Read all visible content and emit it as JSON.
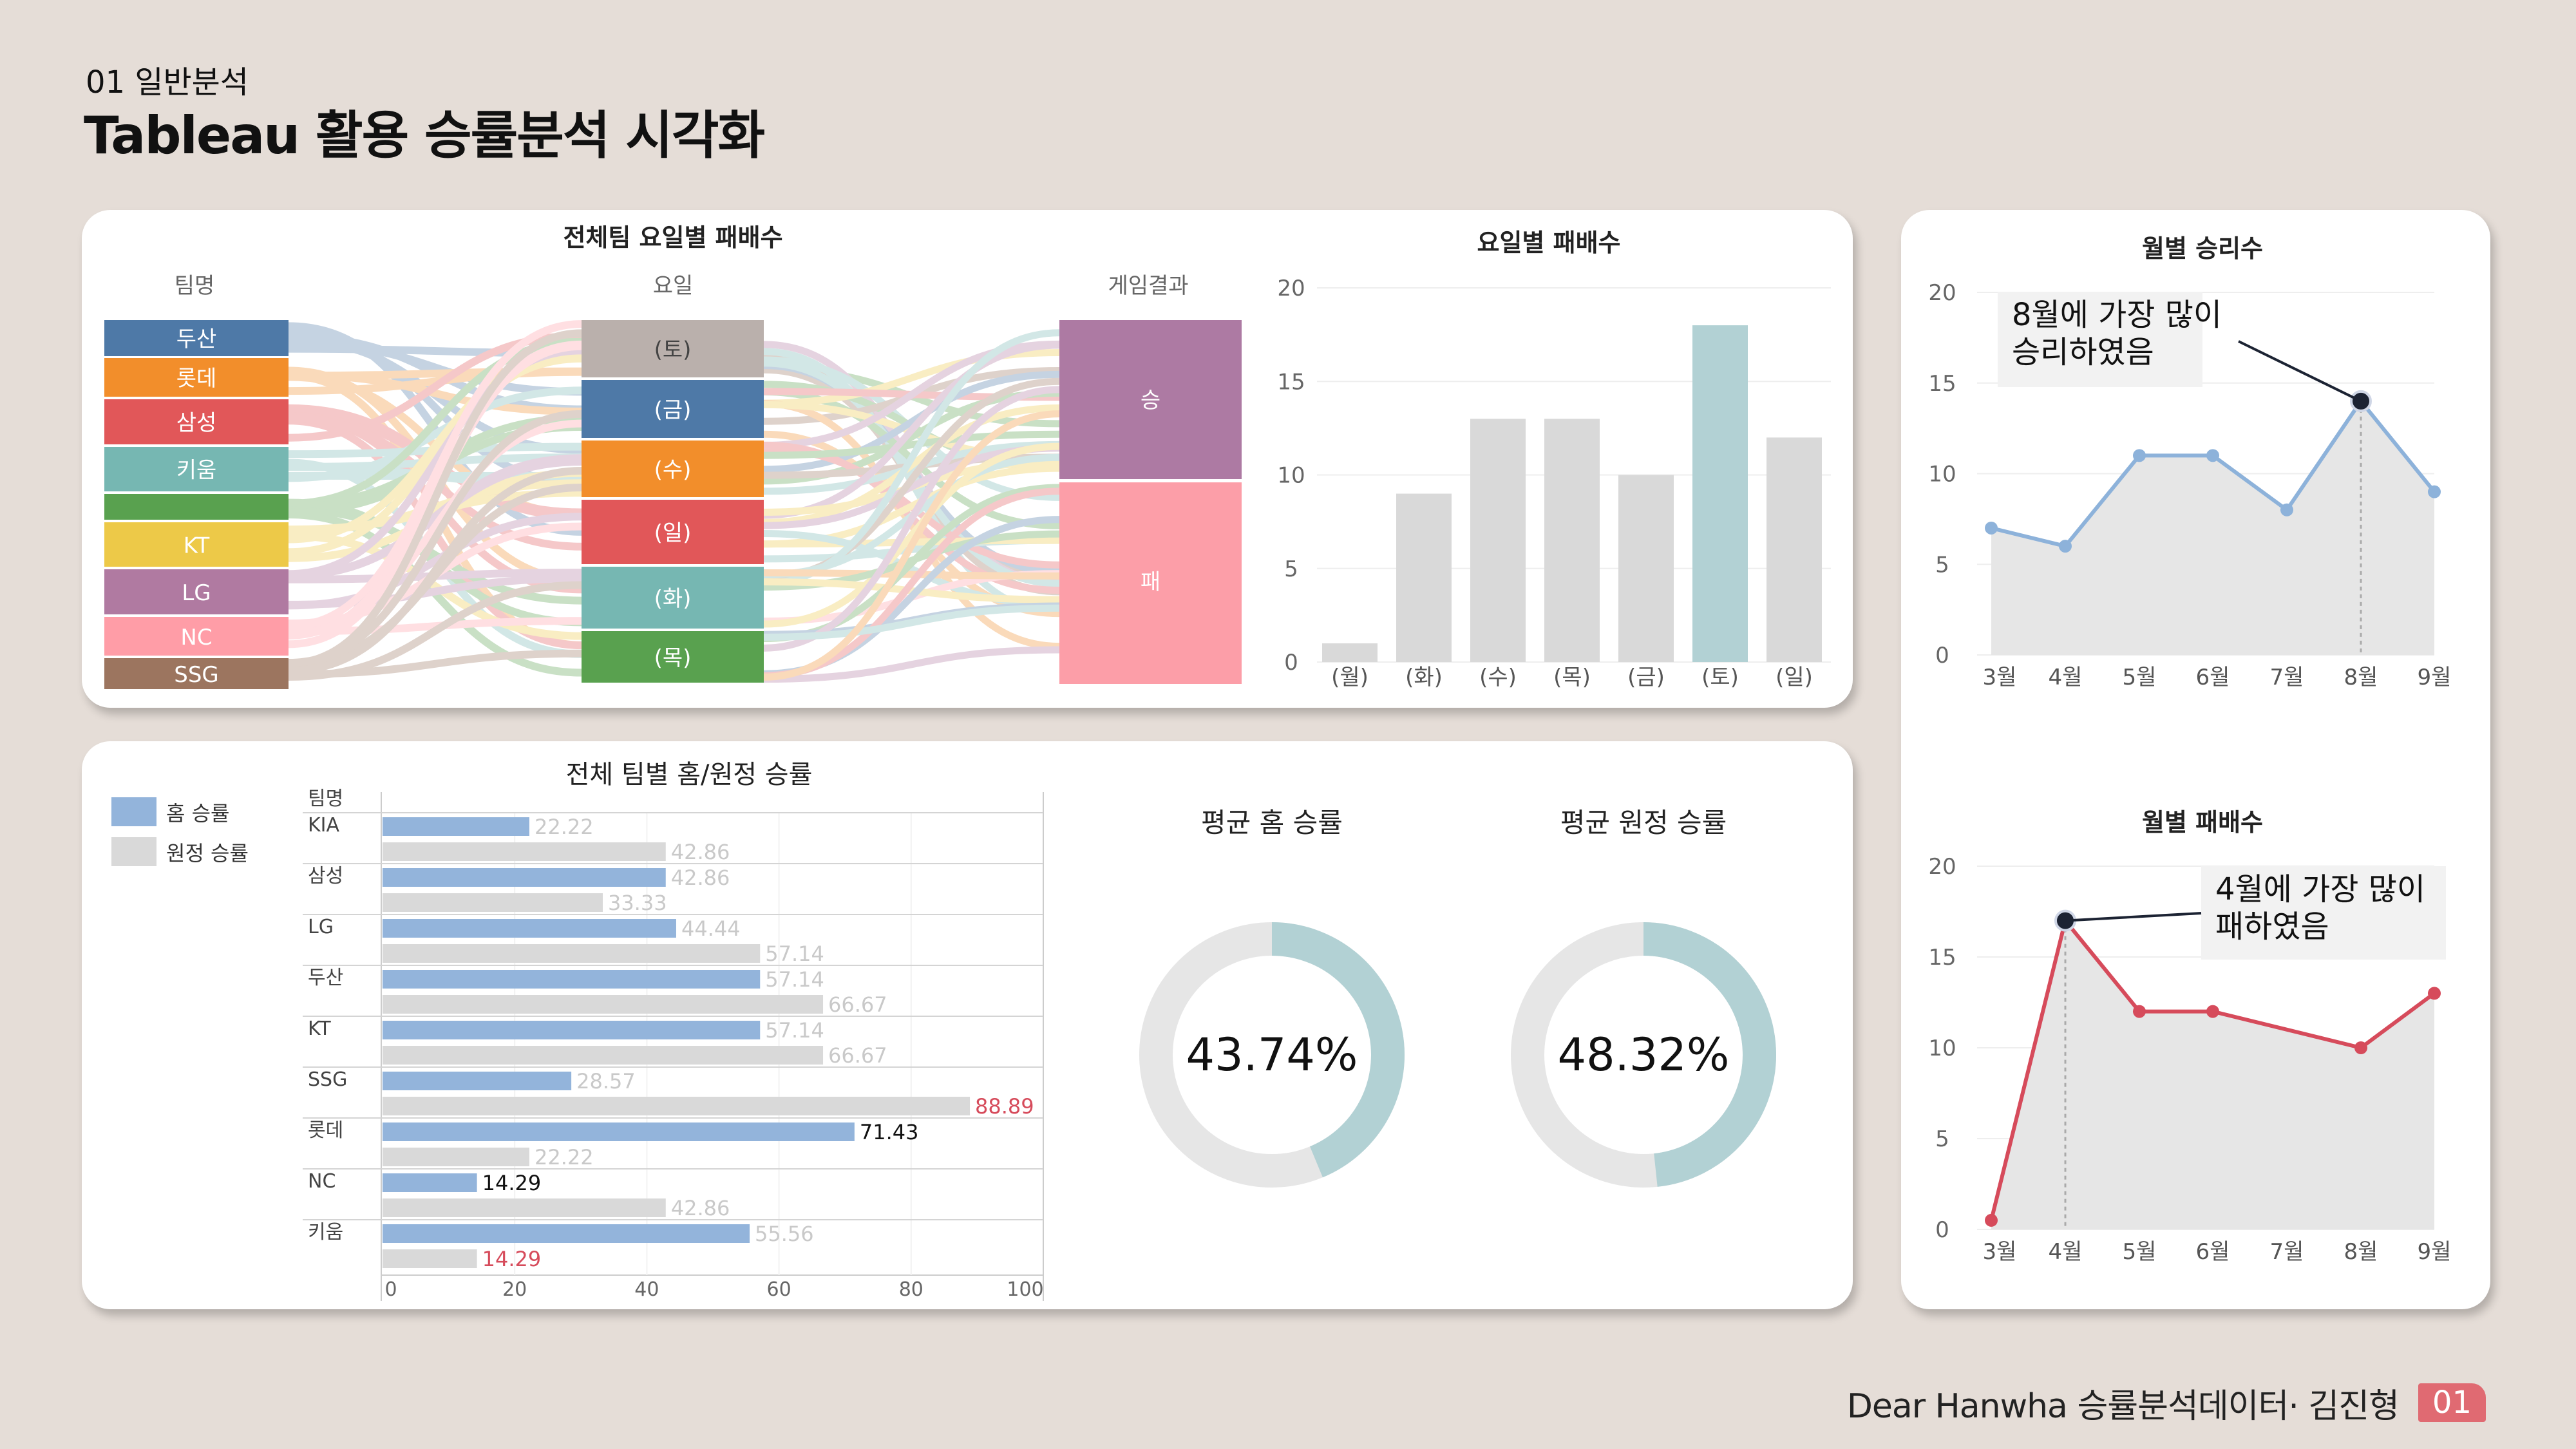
{
  "header": {
    "subtitle": "01 일반분석",
    "title": "Tableau 활용 승률분석 시각화"
  },
  "footer": {
    "text": "Dear Hanwha 승률분석데이터· 김진형",
    "page": "01"
  },
  "colors": {
    "background": "#e5ddd7",
    "card": "#ffffff",
    "bar_gray": "#d9d9d9",
    "bar_highlight": "#b2d1d4",
    "home_blue": "#93b4db",
    "away_gray": "#d9d9d9",
    "win_line": "#8db2da",
    "loss_line": "#d64b5b",
    "accent_red": "#d64b5b",
    "win": "#ad7aa3",
    "loss": "#fc9ea8"
  },
  "chart_data": [
    {
      "id": "sankey",
      "type": "sankey",
      "title": "전체팀 요일별 패배수",
      "column_headers": [
        "팀명",
        "요일",
        "게임결과"
      ],
      "teams": [
        {
          "label": "두산",
          "color": "#4e79a7"
        },
        {
          "label": "롯데",
          "color": "#f28e2b"
        },
        {
          "label": "삼성",
          "color": "#e15759"
        },
        {
          "label": "키움",
          "color": "#76b7b2"
        },
        {
          "label": "",
          "color": "#59a14f"
        },
        {
          "label": "KT",
          "color": "#edc948"
        },
        {
          "label": "LG",
          "color": "#b07aa1"
        },
        {
          "label": "NC",
          "color": "#ff9da7"
        },
        {
          "label": "SSG",
          "color": "#9c755f"
        }
      ],
      "days": [
        {
          "label": "(토)",
          "color": "#bab0ac"
        },
        {
          "label": "(금)",
          "color": "#4e79a7"
        },
        {
          "label": "(수)",
          "color": "#f28e2b"
        },
        {
          "label": "(일)",
          "color": "#e15759"
        },
        {
          "label": "(화)",
          "color": "#76b7b2"
        },
        {
          "label": "(목)",
          "color": "#59a14f"
        }
      ],
      "results": [
        {
          "label": "승",
          "color": "#ad7aa3"
        },
        {
          "label": "패",
          "color": "#fc9ea8"
        }
      ]
    },
    {
      "id": "weekday-losses",
      "type": "bar",
      "title": "요일별 패배수",
      "categories": [
        "(월)",
        "(화)",
        "(수)",
        "(목)",
        "(금)",
        "(토)",
        "(일)"
      ],
      "values": [
        1,
        9,
        13,
        13,
        10,
        18,
        12
      ],
      "highlight": "(토)",
      "yticks": [
        0,
        5,
        10,
        15,
        20
      ],
      "ylim": [
        0,
        20
      ]
    },
    {
      "id": "monthly-wins",
      "type": "area",
      "title": "월별 승리수",
      "categories": [
        "3월",
        "4월",
        "5월",
        "6월",
        "7월",
        "8월",
        "9월"
      ],
      "values": [
        7,
        6,
        11,
        11,
        8,
        14,
        9
      ],
      "yticks": [
        0,
        5,
        10,
        15,
        20
      ],
      "ylim": [
        0,
        20
      ],
      "annotation": {
        "text": [
          "8월에 가장 많이",
          "승리하였음"
        ],
        "target": "8월"
      }
    },
    {
      "id": "home-away",
      "type": "bar",
      "orientation": "horizontal",
      "title": "전체 팀별 홈/원정 승률",
      "row_header": "팀명",
      "legend": [
        "홈 승률",
        "원정 승률"
      ],
      "categories": [
        "KIA",
        "삼성",
        "LG",
        "두산",
        "KT",
        "SSG",
        "롯데",
        "NC",
        "키움"
      ],
      "series": [
        {
          "name": "홈 승률",
          "values": [
            22.22,
            42.86,
            44.44,
            57.14,
            57.14,
            28.57,
            71.43,
            14.29,
            55.56
          ]
        },
        {
          "name": "원정 승률",
          "values": [
            42.86,
            33.33,
            57.14,
            66.67,
            66.67,
            88.89,
            22.22,
            42.86,
            14.29
          ]
        }
      ],
      "label_styles": {
        "home": [
          "light",
          "light",
          "light",
          "light",
          "light",
          "light",
          "dark",
          "dark",
          "light"
        ],
        "away": [
          "light",
          "light",
          "light",
          "light",
          "light",
          "red",
          "light",
          "light",
          "red"
        ]
      },
      "xticks": [
        0,
        20,
        40,
        60,
        80,
        100
      ],
      "xlim": [
        0,
        100
      ]
    },
    {
      "id": "avg-home",
      "type": "pie",
      "title": "평균 홈 승률",
      "value": 43.74,
      "label": "43.74%"
    },
    {
      "id": "avg-away",
      "type": "pie",
      "title": "평균 원정 승률",
      "value": 48.32,
      "label": "48.32%"
    },
    {
      "id": "monthly-losses",
      "type": "area",
      "title": "월별 패배수",
      "categories": [
        "3월",
        "4월",
        "5월",
        "6월",
        "7월",
        "8월",
        "9월"
      ],
      "values": [
        0.5,
        17,
        12,
        12,
        null,
        10,
        13
      ],
      "yticks": [
        0,
        5,
        10,
        15,
        20
      ],
      "ylim": [
        0,
        20
      ],
      "annotation": {
        "text": [
          "4월에 가장 많이",
          "패하였음"
        ],
        "target": "4월"
      }
    }
  ]
}
